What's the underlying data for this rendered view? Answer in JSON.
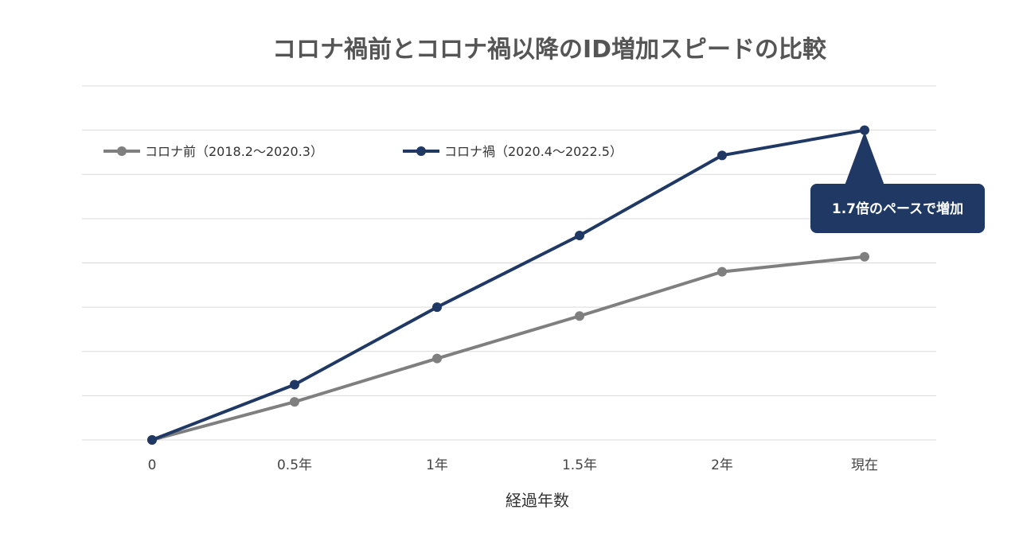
{
  "chart_data": {
    "type": "line",
    "title": "コロナ禍前とコロナ禍以降のID増加スピードの比較",
    "xlabel": "経過年数",
    "ylabel": "",
    "categories": [
      "0",
      "0.5年",
      "1年",
      "1.5年",
      "2年",
      "現在"
    ],
    "ylim": [
      0,
      8
    ],
    "grid": true,
    "legend_position": "top-left",
    "series": [
      {
        "name": "コロナ前（2018.2～2020.3）",
        "color": "#7f7f7f",
        "values": [
          0,
          0.86,
          1.84,
          2.8,
          3.8,
          4.14
        ]
      },
      {
        "name": "コロナ禍（2020.4～2022.5）",
        "color": "#1f3864",
        "values": [
          0,
          1.25,
          3.0,
          4.62,
          6.43,
          7.0
        ]
      }
    ],
    "annotation": {
      "text": "1.7倍のペースで増加",
      "series_index": 1,
      "point_index": 5,
      "color": "#1f3864"
    }
  }
}
